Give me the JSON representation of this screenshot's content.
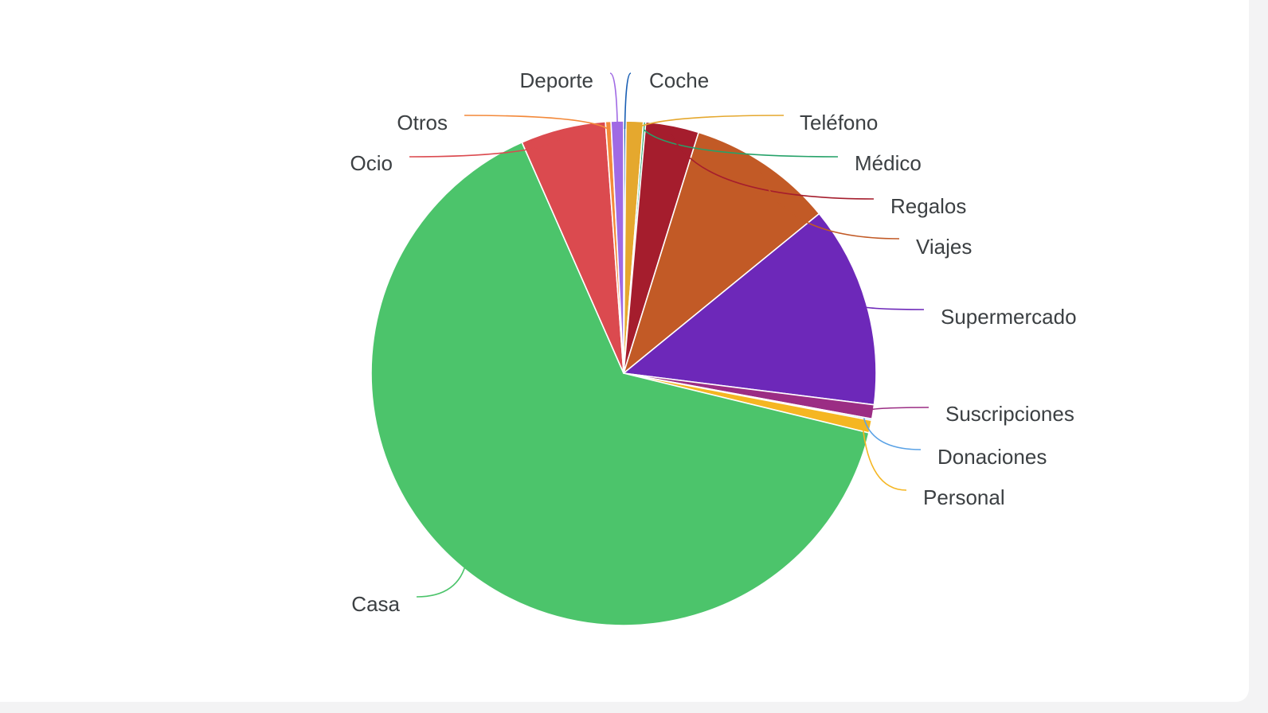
{
  "chart_data": {
    "type": "pie",
    "title": "",
    "slices": [
      {
        "label": "Coche",
        "value": 0.15,
        "color": "#1a5fb4"
      },
      {
        "label": "Teléfono",
        "value": 1.1,
        "color": "#e5a82e"
      },
      {
        "label": "Médico",
        "value": 0.15,
        "color": "#26a269"
      },
      {
        "label": "Regalos",
        "value": 3.4,
        "color": "#a51d2d"
      },
      {
        "label": "Viajes",
        "value": 9.3,
        "color": "#c25a26"
      },
      {
        "label": "Supermercado",
        "value": 12.9,
        "color": "#6d28b9"
      },
      {
        "label": "Suscripciones",
        "value": 0.9,
        "color": "#9b2d84"
      },
      {
        "label": "Donaciones",
        "value": 0.1,
        "color": "#5aa2e6"
      },
      {
        "label": "Personal",
        "value": 0.8,
        "color": "#f5b622"
      },
      {
        "label": "Casa",
        "value": 64.6,
        "color": "#4cc46b"
      },
      {
        "label": "Ocio",
        "value": 5.45,
        "color": "#db4a4f"
      },
      {
        "label": "Otros",
        "value": 0.35,
        "color": "#f3893a"
      },
      {
        "label": "Deporte",
        "value": 0.8,
        "color": "#a06ae4"
      }
    ]
  }
}
